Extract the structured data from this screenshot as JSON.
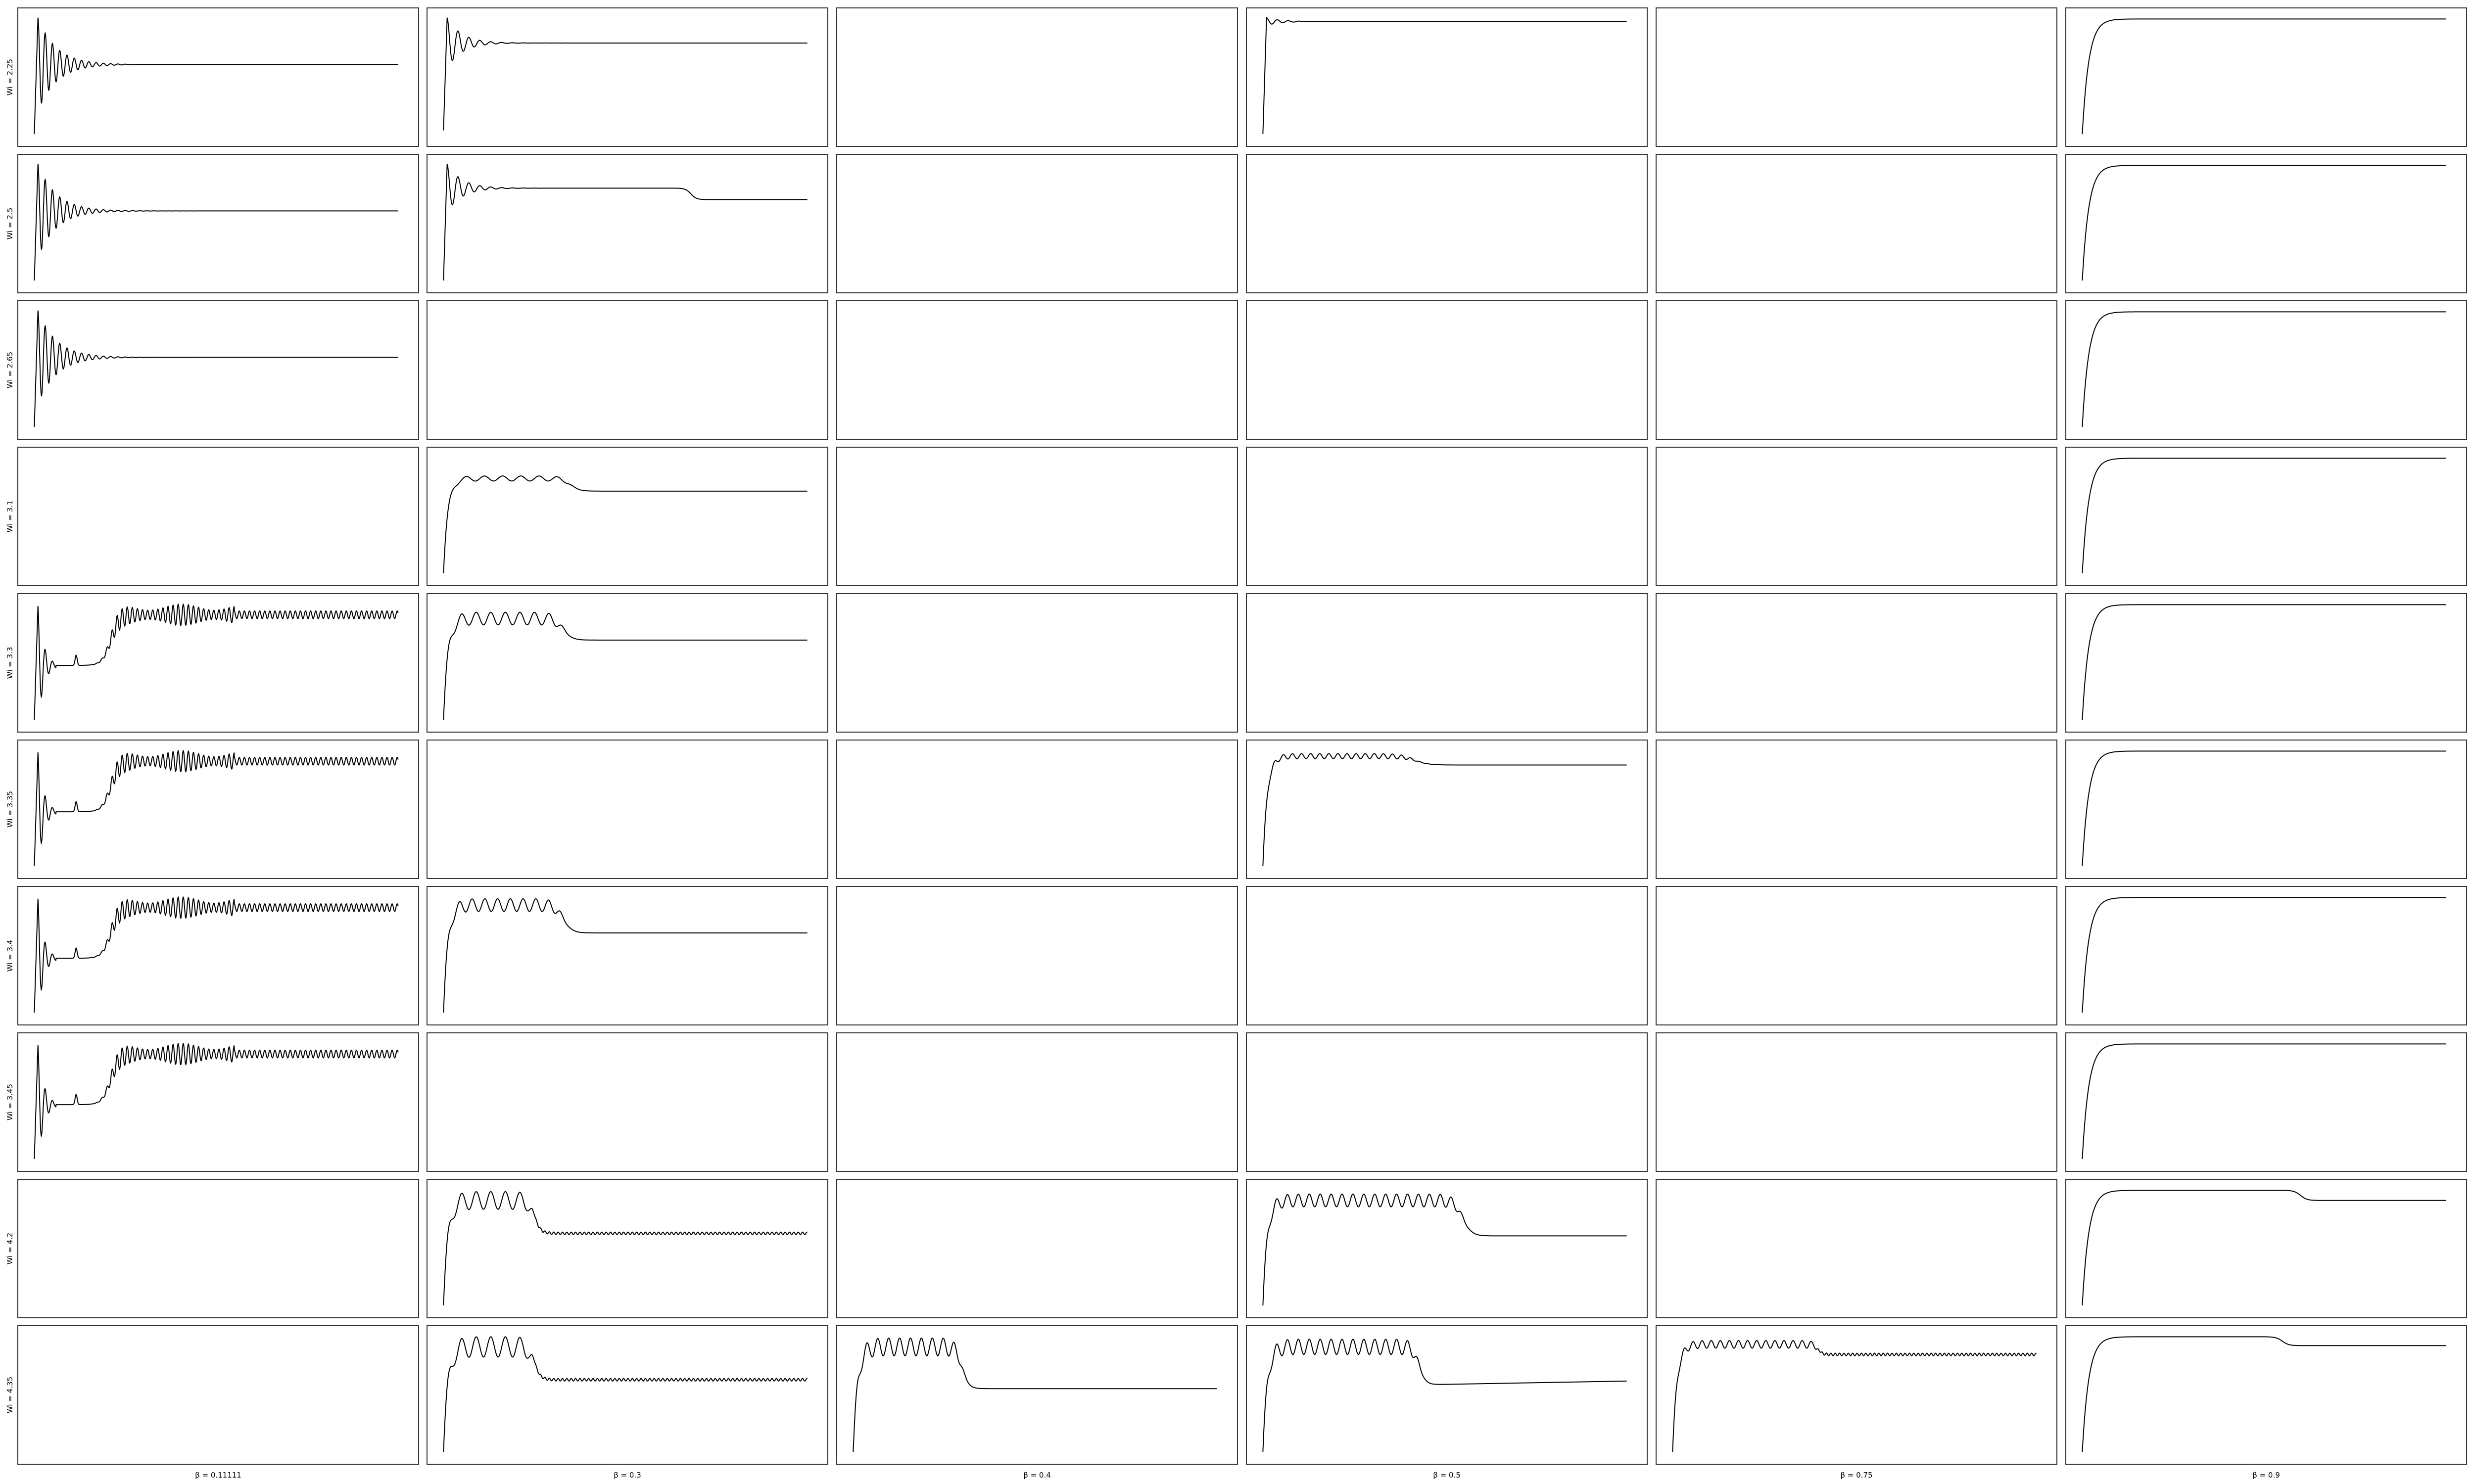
{
  "chart_data": {
    "type": "line",
    "layout": "small-multiples grid, 10 rows x 6 columns, no axis ticks",
    "col_labels": [
      "β = 0.11111",
      "β = 0.3",
      "β = 0.4",
      "β = 0.5",
      "β = 0.75",
      "β = 0.9"
    ],
    "row_labels": [
      "Wi = 2.25",
      "Wi = 2.5",
      "Wi = 2.65",
      "Wi = 3.1",
      "Wi = 3.3",
      "Wi = 3.35",
      "Wi = 3.4",
      "Wi = 3.45",
      "Wi = 4.2",
      "Wi = 4.35"
    ],
    "line_color": "#000000",
    "grid": false,
    "note_units": "y values normalised 0 (panel bottom) to 1 (panel top); x from 0 to 1 across panel; empty cells have no series",
    "cells": [
      [
        {
          "shape": "ring",
          "peak": 0.97,
          "min0": 0.05,
          "steady": 0.6,
          "ring_amp": 0.3,
          "ring_period": 0.02,
          "ring_decay": 0.05
        },
        {
          "shape": "ring",
          "peak": 0.97,
          "min0": 0.08,
          "steady": 0.77,
          "ring_amp": 0.2,
          "ring_period": 0.03,
          "ring_decay": 0.04
        },
        null,
        {
          "shape": "ring",
          "peak": 0.97,
          "min0": 0.05,
          "steady": 0.94,
          "ring_amp": 0.1,
          "ring_period": 0.03,
          "ring_decay": 0.04
        },
        null,
        {
          "shape": "rise",
          "start": 0.05,
          "steady": 0.96,
          "tau": 0.018
        }
      ],
      [
        {
          "shape": "ring",
          "peak": 0.97,
          "min0": 0.05,
          "steady": 0.6,
          "ring_amp": 0.3,
          "ring_period": 0.02,
          "ring_decay": 0.05
        },
        {
          "shape": "ringstep",
          "peak": 0.97,
          "min0": 0.05,
          "steady": 0.78,
          "ring_amp": 0.2,
          "ring_period": 0.03,
          "ring_decay": 0.04,
          "step_at": 0.68,
          "step_to": 0.69,
          "step_width": 0.025
        },
        null,
        null,
        null,
        {
          "shape": "rise",
          "start": 0.05,
          "steady": 0.96,
          "tau": 0.018
        }
      ],
      [
        {
          "shape": "ring",
          "peak": 0.97,
          "min0": 0.05,
          "steady": 0.6,
          "ring_amp": 0.3,
          "ring_period": 0.02,
          "ring_decay": 0.05
        },
        null,
        null,
        null,
        null,
        {
          "shape": "rise",
          "start": 0.05,
          "steady": 0.96,
          "tau": 0.018
        }
      ],
      [
        null,
        {
          "shape": "hump",
          "start": 0.05,
          "plateau": 0.8,
          "steady": 0.7,
          "wiggle": 0.02,
          "wiggle_period": 0.05,
          "drop_at": 0.35,
          "drop_width": 0.04
        },
        null,
        null,
        null,
        {
          "shape": "rise",
          "start": 0.05,
          "steady": 0.96,
          "tau": 0.018
        }
      ],
      [
        {
          "shape": "osc",
          "start": 0.05,
          "low": 0.48,
          "high": 0.88,
          "steady": 0.88,
          "rise_at": 0.21,
          "amp": 0.06,
          "period": 0.014
        },
        {
          "shape": "hump",
          "start": 0.05,
          "plateau": 0.85,
          "steady": 0.68,
          "wiggle": 0.05,
          "wiggle_period": 0.04,
          "drop_at": 0.33,
          "drop_width": 0.04
        },
        null,
        null,
        null,
        {
          "shape": "rise",
          "start": 0.05,
          "steady": 0.96,
          "tau": 0.018
        }
      ],
      [
        {
          "shape": "osc",
          "start": 0.05,
          "low": 0.48,
          "high": 0.88,
          "steady": 0.88,
          "rise_at": 0.21,
          "amp": 0.06,
          "period": 0.014
        },
        null,
        null,
        {
          "shape": "hump",
          "start": 0.05,
          "plateau": 0.92,
          "steady": 0.85,
          "wiggle": 0.02,
          "wiggle_period": 0.025,
          "drop_at": 0.42,
          "drop_width": 0.06
        },
        null,
        {
          "shape": "rise",
          "start": 0.05,
          "steady": 0.96,
          "tau": 0.018
        }
      ],
      [
        {
          "shape": "osc",
          "start": 0.05,
          "low": 0.48,
          "high": 0.88,
          "steady": 0.88,
          "rise_at": 0.21,
          "amp": 0.06,
          "period": 0.014
        },
        {
          "shape": "hump",
          "start": 0.05,
          "plateau": 0.9,
          "steady": 0.68,
          "wiggle": 0.05,
          "wiggle_period": 0.035,
          "drop_at": 0.33,
          "drop_width": 0.04
        },
        null,
        null,
        null,
        {
          "shape": "rise",
          "start": 0.05,
          "steady": 0.96,
          "tau": 0.018
        }
      ],
      [
        {
          "shape": "osc",
          "start": 0.05,
          "low": 0.48,
          "high": 0.88,
          "steady": 0.88,
          "rise_at": 0.21,
          "amp": 0.06,
          "period": 0.014
        },
        null,
        null,
        null,
        null,
        {
          "shape": "rise",
          "start": 0.05,
          "steady": 0.96,
          "tau": 0.018
        }
      ],
      [
        null,
        {
          "shape": "hump",
          "start": 0.05,
          "plateau": 0.88,
          "steady": 0.62,
          "wiggle": 0.07,
          "wiggle_period": 0.04,
          "drop_at": 0.25,
          "drop_width": 0.03,
          "tail_osc": 0.01
        },
        null,
        {
          "shape": "hump",
          "start": 0.05,
          "plateau": 0.88,
          "steady": 0.6,
          "wiggle": 0.05,
          "wiggle_period": 0.03,
          "drop_at": 0.55,
          "drop_width": 0.04
        },
        null,
        {
          "shape": "risestep",
          "start": 0.05,
          "steady": 0.96,
          "tau": 0.018,
          "step_at": 0.6,
          "step_to": 0.88,
          "step_width": 0.03
        }
      ],
      [
        null,
        {
          "shape": "hump",
          "start": 0.05,
          "plateau": 0.88,
          "steady": 0.62,
          "wiggle": 0.08,
          "wiggle_period": 0.04,
          "drop_at": 0.25,
          "drop_width": 0.03,
          "tail_osc": 0.01
        },
        {
          "shape": "hump",
          "start": 0.05,
          "plateau": 0.88,
          "steady": 0.55,
          "wiggle": 0.07,
          "wiggle_period": 0.03,
          "drop_at": 0.3,
          "drop_width": 0.03
        },
        {
          "shape": "hump",
          "start": 0.05,
          "plateau": 0.88,
          "steady": 0.58,
          "wiggle": 0.06,
          "wiggle_period": 0.03,
          "drop_at": 0.43,
          "drop_width": 0.03,
          "tail_rise": 0.03
        },
        {
          "shape": "hump",
          "start": 0.05,
          "plateau": 0.9,
          "steady": 0.82,
          "wiggle": 0.03,
          "wiggle_period": 0.025,
          "drop_at": 0.4,
          "drop_width": 0.02,
          "tail_osc": 0.01
        },
        {
          "shape": "risestep",
          "start": 0.05,
          "steady": 0.96,
          "tau": 0.018,
          "step_at": 0.55,
          "step_to": 0.89,
          "step_width": 0.03
        }
      ]
    ]
  }
}
